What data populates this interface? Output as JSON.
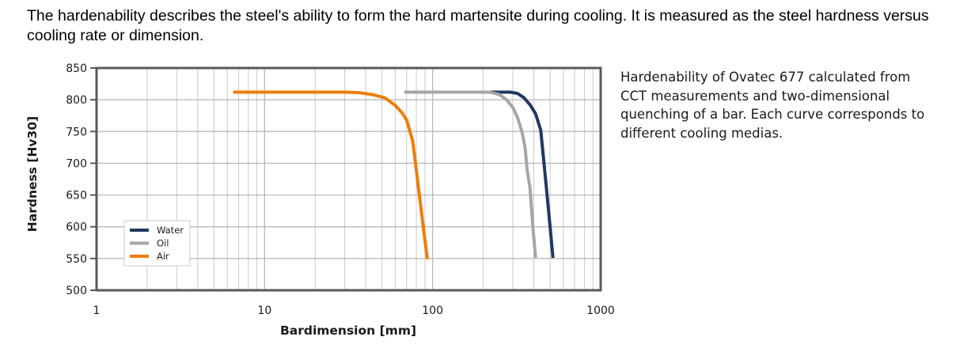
{
  "intro_text": "The hardenability describes the steel's ability to form the hard martensite during cooling. It is measured as the steel hardness versus cooling rate or dimension.",
  "caption_text": "Hardenability of Ovatec 677 calculated from CCT measurements and two-dimensional quenching of a bar. Each curve corresponds to different cooling medias.",
  "chart_data": {
    "type": "line",
    "title": "",
    "xlabel": "Bardimension [mm]",
    "ylabel": "Hardness [Hv30]",
    "xscale": "log",
    "xlim": [
      1,
      1000
    ],
    "ylim": [
      500,
      850
    ],
    "xticks": [
      1,
      10,
      100,
      1000
    ],
    "xtick_labels": [
      "1",
      "10",
      "100",
      "1000"
    ],
    "yticks": [
      500,
      550,
      600,
      650,
      700,
      750,
      800,
      850
    ],
    "ytick_labels": [
      "500",
      "550",
      "600",
      "650",
      "700",
      "750",
      "800",
      "850"
    ],
    "grid": true,
    "legend_position": "lower-left",
    "series": [
      {
        "name": "Water",
        "color": "#1f3864",
        "x": [
          68,
          150,
          250,
          290,
          320,
          350,
          380,
          410,
          440,
          460,
          480,
          500,
          520
        ],
        "y": [
          812,
          812,
          812,
          812,
          810,
          803,
          792,
          778,
          752,
          700,
          650,
          600,
          551
        ]
      },
      {
        "name": "Oil",
        "color": "#a6a6a6",
        "x": [
          68,
          150,
          220,
          250,
          275,
          300,
          320,
          340,
          355,
          365,
          380,
          395,
          410
        ],
        "y": [
          812,
          812,
          812,
          808,
          800,
          788,
          772,
          750,
          725,
          690,
          660,
          600,
          551
        ]
      },
      {
        "name": "Air",
        "color": "#ed7d0a",
        "x": [
          6.5,
          15,
          30,
          37,
          44,
          52,
          60,
          66,
          70,
          73,
          76,
          78,
          82,
          87,
          90,
          93
        ],
        "y": [
          812,
          812,
          812,
          811,
          808,
          803,
          791,
          779,
          768,
          752,
          735,
          712,
          665,
          610,
          578,
          549
        ]
      }
    ]
  }
}
